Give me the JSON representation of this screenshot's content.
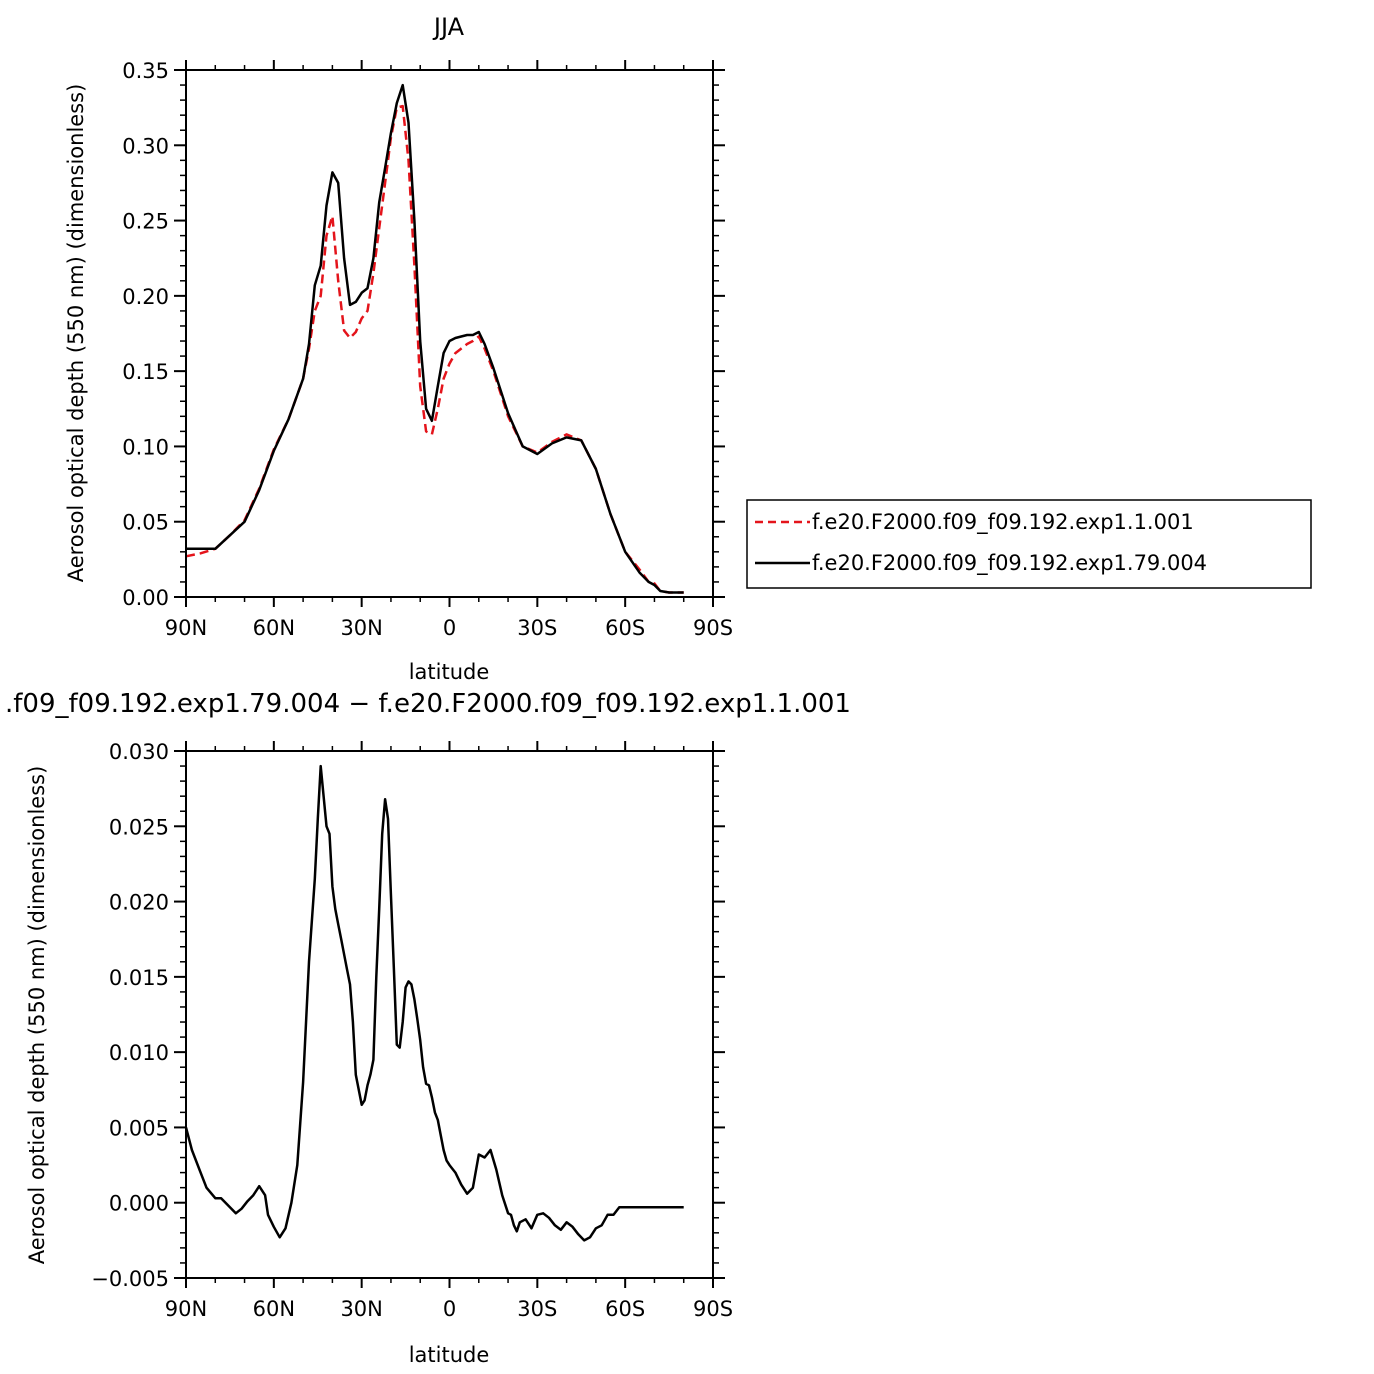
{
  "chart_data": [
    {
      "type": "line",
      "title": "JJA",
      "xlabel": "latitude",
      "ylabel": "Aerosol optical depth (550 nm) (dimensionless)",
      "xlim": [
        -90,
        90
      ],
      "ylim": [
        0,
        0.35
      ],
      "x_ticks": [
        {
          "value": -90,
          "label": "90N"
        },
        {
          "value": -60,
          "label": "60N"
        },
        {
          "value": -30,
          "label": "30N"
        },
        {
          "value": 0,
          "label": "0"
        },
        {
          "value": 30,
          "label": "30S"
        },
        {
          "value": 60,
          "label": "60S"
        },
        {
          "value": 90,
          "label": "90S"
        }
      ],
      "y_ticks": [
        {
          "value": 0.0,
          "label": "0.00"
        },
        {
          "value": 0.05,
          "label": "0.05"
        },
        {
          "value": 0.1,
          "label": "0.10"
        },
        {
          "value": 0.15,
          "label": "0.15"
        },
        {
          "value": 0.2,
          "label": "0.20"
        },
        {
          "value": 0.25,
          "label": "0.25"
        },
        {
          "value": 0.3,
          "label": "0.30"
        },
        {
          "value": 0.35,
          "label": "0.35"
        }
      ],
      "legend_position": "right",
      "series": [
        {
          "name": "f.e20.F2000.f09_f09.192.exp1.1.001",
          "color": "#e4141b",
          "style": "dashed",
          "x": [
            -90,
            -85,
            -80,
            -75,
            -70,
            -65,
            -60,
            -55,
            -50,
            -48,
            -46,
            -44,
            -42,
            -40,
            -38,
            -36,
            -34,
            -32,
            -30,
            -28,
            -26,
            -24,
            -22,
            -20,
            -18,
            -16,
            -14,
            -12,
            -10,
            -8,
            -6,
            -4,
            -2,
            0,
            2,
            4,
            6,
            8,
            10,
            12,
            15,
            20,
            25,
            30,
            35,
            40,
            45,
            50,
            55,
            60,
            65,
            68,
            70,
            72,
            75,
            80
          ],
          "y": [
            0.027,
            0.029,
            0.032,
            0.041,
            0.051,
            0.072,
            0.098,
            0.118,
            0.145,
            0.165,
            0.19,
            0.2,
            0.24,
            0.253,
            0.21,
            0.177,
            0.172,
            0.176,
            0.185,
            0.19,
            0.215,
            0.245,
            0.275,
            0.305,
            0.325,
            0.326,
            0.29,
            0.22,
            0.14,
            0.11,
            0.108,
            0.125,
            0.145,
            0.155,
            0.162,
            0.165,
            0.168,
            0.17,
            0.173,
            0.165,
            0.15,
            0.12,
            0.1,
            0.096,
            0.103,
            0.108,
            0.104,
            0.085,
            0.055,
            0.03,
            0.018,
            0.01,
            0.009,
            0.004,
            0.003,
            0.003
          ]
        },
        {
          "name": "f.e20.F2000.f09_f09.192.exp1.79.004",
          "color": "#000000",
          "style": "solid",
          "x": [
            -90,
            -85,
            -80,
            -75,
            -70,
            -65,
            -60,
            -55,
            -50,
            -48,
            -46,
            -44,
            -42,
            -40,
            -38,
            -36,
            -34,
            -32,
            -30,
            -28,
            -26,
            -24,
            -22,
            -20,
            -18,
            -16,
            -14,
            -12,
            -10,
            -8,
            -6,
            -4,
            -2,
            0,
            2,
            4,
            6,
            8,
            10,
            12,
            15,
            20,
            25,
            30,
            35,
            40,
            45,
            50,
            55,
            60,
            65,
            68,
            70,
            72,
            75,
            80
          ],
          "y": [
            0.032,
            0.032,
            0.032,
            0.041,
            0.05,
            0.071,
            0.097,
            0.118,
            0.145,
            0.168,
            0.207,
            0.22,
            0.26,
            0.282,
            0.275,
            0.225,
            0.194,
            0.196,
            0.202,
            0.205,
            0.225,
            0.262,
            0.285,
            0.308,
            0.328,
            0.34,
            0.315,
            0.25,
            0.17,
            0.125,
            0.117,
            0.14,
            0.162,
            0.17,
            0.172,
            0.173,
            0.174,
            0.174,
            0.176,
            0.168,
            0.152,
            0.122,
            0.1,
            0.095,
            0.102,
            0.106,
            0.104,
            0.085,
            0.055,
            0.03,
            0.016,
            0.01,
            0.008,
            0.004,
            0.003,
            0.003
          ]
        }
      ]
    },
    {
      "type": "line",
      "title": ".f09_f09.192.exp1.79.004 − f.e20.F2000.f09_f09.192.exp1.1.001",
      "xlabel": "latitude",
      "ylabel": "Aerosol optical depth (550 nm) (dimensionless)",
      "xlim": [
        -90,
        90
      ],
      "ylim": [
        -0.005,
        0.03
      ],
      "x_ticks": [
        {
          "value": -90,
          "label": "90N"
        },
        {
          "value": -60,
          "label": "60N"
        },
        {
          "value": -30,
          "label": "30N"
        },
        {
          "value": 0,
          "label": "0"
        },
        {
          "value": 30,
          "label": "30S"
        },
        {
          "value": 60,
          "label": "60S"
        },
        {
          "value": 90,
          "label": "90S"
        }
      ],
      "y_ticks": [
        {
          "value": -0.005,
          "label": "−0.005"
        },
        {
          "value": 0.0,
          "label": "0.000"
        },
        {
          "value": 0.005,
          "label": "0.005"
        },
        {
          "value": 0.01,
          "label": "0.010"
        },
        {
          "value": 0.015,
          "label": "0.015"
        },
        {
          "value": 0.02,
          "label": "0.020"
        },
        {
          "value": 0.025,
          "label": "0.025"
        },
        {
          "value": 0.03,
          "label": "0.030"
        }
      ],
      "series": [
        {
          "color": "#000000",
          "style": "solid",
          "x": [
            -90,
            -88,
            -85,
            -83,
            -80,
            -78,
            -76,
            -73,
            -71,
            -69,
            -67,
            -65,
            -63,
            -62,
            -60,
            -58,
            -56,
            -54,
            -52,
            -50,
            -48,
            -46,
            -45,
            -44,
            -42,
            -41,
            -40,
            -39,
            -38,
            -37,
            -36,
            -35,
            -34,
            -33,
            -32,
            -30,
            -29,
            -28,
            -27,
            -26,
            -25,
            -24,
            -23,
            -22,
            -21,
            -20,
            -19,
            -18,
            -17,
            -16,
            -15,
            -14,
            -13,
            -12,
            -11,
            -10,
            -9,
            -8,
            -7,
            -6,
            -5,
            -4,
            -3,
            -2,
            -1,
            0,
            2,
            4,
            6,
            8,
            10,
            12,
            14,
            16,
            18,
            20,
            21,
            22,
            23,
            24,
            26,
            28,
            30,
            32,
            34,
            36,
            38,
            40,
            42,
            44,
            46,
            48,
            50,
            52,
            54,
            56,
            58,
            60,
            62,
            64,
            66,
            68,
            70,
            72,
            74,
            76,
            78,
            80
          ],
          "y": [
            0.005,
            0.0035,
            0.002,
            0.001,
            0.0003,
            0.0003,
            -0.0001,
            -0.0007,
            -0.0004,
            0.0001,
            0.0005,
            0.0011,
            0.0005,
            -0.0008,
            -0.0016,
            -0.0023,
            -0.0017,
            0,
            0.0025,
            0.008,
            0.016,
            0.0215,
            0.0255,
            0.029,
            0.025,
            0.0245,
            0.021,
            0.0195,
            0.0185,
            0.0175,
            0.0165,
            0.0155,
            0.0145,
            0.012,
            0.0085,
            0.0065,
            0.0068,
            0.0078,
            0.0085,
            0.0095,
            0.015,
            0.0195,
            0.0245,
            0.0268,
            0.0255,
            0.0205,
            0.0155,
            0.0105,
            0.0103,
            0.012,
            0.0143,
            0.0147,
            0.0145,
            0.0135,
            0.0122,
            0.0108,
            0.009,
            0.0079,
            0.0078,
            0.007,
            0.006,
            0.0055,
            0.0045,
            0.0035,
            0.0028,
            0.0025,
            0.002,
            0.0012,
            0.0006,
            0.001,
            0.0032,
            0.003,
            0.0035,
            0.0022,
            0.0005,
            -0.0007,
            -0.0008,
            -0.0015,
            -0.0019,
            -0.0013,
            -0.0011,
            -0.0017,
            -0.0008,
            -0.0007,
            -0.001,
            -0.0015,
            -0.0018,
            -0.0013,
            -0.0016,
            -0.0021,
            -0.0025,
            -0.0023,
            -0.0017,
            -0.0015,
            -0.0008,
            -0.0008,
            -0.0003,
            -0.0003,
            -0.0003,
            -0.0003,
            -0.0003,
            -0.0003,
            -0.0003,
            -0.0003,
            -0.0003,
            -0.0003,
            -0.0003,
            -0.0003
          ]
        }
      ]
    }
  ]
}
